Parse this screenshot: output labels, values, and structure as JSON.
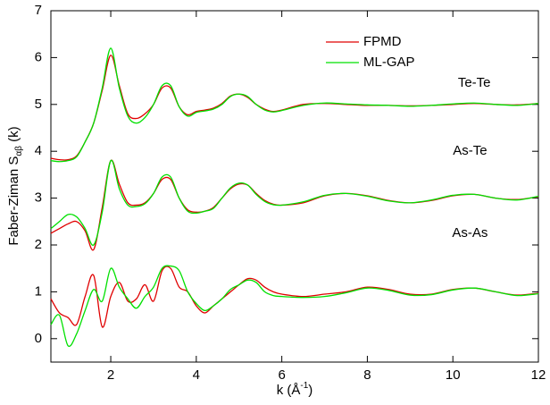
{
  "chart_data": {
    "type": "line",
    "xlabel": {
      "text": "k (Å",
      "sup": "-1",
      "suffix": ")"
    },
    "ylabel": {
      "text": "Faber-Ziman S",
      "sub": "αβ",
      "suffix": " (k)"
    },
    "xlim": [
      0.6,
      12
    ],
    "ylim": [
      -0.5,
      7
    ],
    "xticks": [
      2,
      4,
      6,
      8,
      10,
      12
    ],
    "yticks": [
      0,
      1,
      2,
      3,
      4,
      5,
      6,
      7
    ],
    "legend": [
      {
        "name": "FPMD",
        "color": "#e00000"
      },
      {
        "name": "ML-GAP",
        "color": "#00e000"
      }
    ],
    "x": [
      0.6,
      0.8,
      1.0,
      1.2,
      1.4,
      1.6,
      1.8,
      2.0,
      2.2,
      2.4,
      2.6,
      2.8,
      3.0,
      3.2,
      3.4,
      3.6,
      3.8,
      4.0,
      4.2,
      4.4,
      4.6,
      4.8,
      5.0,
      5.2,
      5.4,
      5.6,
      5.8,
      6.0,
      6.5,
      7.0,
      7.5,
      8.0,
      8.5,
      9.0,
      9.5,
      10.0,
      10.5,
      11.0,
      11.5,
      12.0
    ],
    "groups": [
      {
        "label": "Te-Te",
        "series": [
          {
            "values": [
              3.85,
              3.82,
              3.82,
              3.9,
              4.2,
              4.6,
              5.3,
              6.05,
              5.4,
              4.8,
              4.7,
              4.8,
              5.0,
              5.35,
              5.35,
              4.95,
              4.78,
              4.85,
              4.88,
              4.92,
              5.02,
              5.18,
              5.22,
              5.15,
              5.0,
              4.9,
              4.85,
              4.88,
              5.0,
              5.02,
              5.0,
              4.98,
              4.98,
              4.97,
              4.98,
              5.0,
              5.02,
              5.0,
              4.99,
              5.02
            ]
          },
          {
            "values": [
              3.8,
              3.78,
              3.8,
              3.88,
              4.2,
              4.6,
              5.35,
              6.2,
              5.35,
              4.75,
              4.6,
              4.72,
              5.0,
              5.4,
              5.4,
              4.95,
              4.75,
              4.83,
              4.86,
              4.9,
              5.0,
              5.17,
              5.22,
              5.17,
              5.0,
              4.88,
              4.84,
              4.87,
              4.98,
              5.03,
              5.01,
              4.99,
              4.98,
              4.96,
              4.98,
              5.01,
              5.03,
              5.0,
              4.98,
              5.02
            ]
          }
        ]
      },
      {
        "label": "As-Te",
        "series": [
          {
            "values": [
              2.25,
              2.35,
              2.45,
              2.5,
              2.3,
              1.9,
              2.8,
              3.8,
              3.3,
              2.9,
              2.85,
              2.9,
              3.1,
              3.4,
              3.4,
              3.0,
              2.75,
              2.7,
              2.72,
              2.8,
              3.0,
              3.2,
              3.3,
              3.28,
              3.1,
              2.95,
              2.87,
              2.85,
              2.9,
              3.05,
              3.1,
              3.05,
              2.95,
              2.9,
              2.95,
              3.05,
              3.08,
              3.0,
              2.97,
              3.03
            ]
          },
          {
            "values": [
              2.35,
              2.5,
              2.65,
              2.6,
              2.35,
              2.0,
              2.7,
              3.8,
              3.2,
              2.85,
              2.82,
              2.88,
              3.1,
              3.45,
              3.45,
              3.0,
              2.72,
              2.68,
              2.72,
              2.78,
              3.0,
              3.22,
              3.32,
              3.28,
              3.08,
              2.93,
              2.86,
              2.85,
              2.92,
              3.06,
              3.1,
              3.04,
              2.94,
              2.9,
              2.96,
              3.06,
              3.08,
              3.0,
              2.96,
              3.04
            ]
          }
        ]
      },
      {
        "label": "As-As",
        "series": [
          {
            "values": [
              0.85,
              0.55,
              0.45,
              0.3,
              0.9,
              1.35,
              0.25,
              0.9,
              1.2,
              0.8,
              0.85,
              1.15,
              0.8,
              1.45,
              1.5,
              1.1,
              1.0,
              0.7,
              0.55,
              0.7,
              0.85,
              1.0,
              1.15,
              1.28,
              1.25,
              1.1,
              1.0,
              0.95,
              0.9,
              0.95,
              1.0,
              1.1,
              1.05,
              0.95,
              0.95,
              1.05,
              1.08,
              1.0,
              0.93,
              0.97
            ]
          },
          {
            "values": [
              0.3,
              0.5,
              -0.15,
              0.1,
              0.6,
              1.05,
              0.8,
              1.5,
              1.1,
              0.85,
              0.65,
              0.9,
              1.1,
              1.5,
              1.55,
              1.45,
              1.0,
              0.75,
              0.6,
              0.7,
              0.85,
              1.05,
              1.15,
              1.25,
              1.2,
              1.0,
              0.92,
              0.9,
              0.88,
              0.9,
              0.98,
              1.08,
              1.03,
              0.93,
              0.94,
              1.04,
              1.08,
              1.0,
              0.92,
              0.96
            ]
          }
        ]
      }
    ]
  }
}
